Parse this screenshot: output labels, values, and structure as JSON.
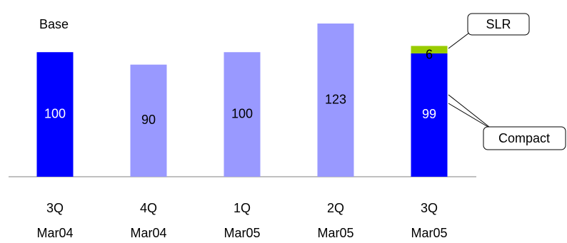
{
  "chart_data": {
    "type": "stacked-bar",
    "annotation": "Base",
    "categories": [
      [
        "3Q",
        "Mar04"
      ],
      [
        "4Q",
        "Mar04"
      ],
      [
        "1Q",
        "Mar05"
      ],
      [
        "2Q",
        "Mar05"
      ],
      [
        "3Q",
        "Mar05"
      ]
    ],
    "series": [
      {
        "name": "Compact",
        "colors": [
          "#0000ff",
          "#9999ff",
          "#9999ff",
          "#9999ff",
          "#0000ff"
        ],
        "values": [
          100,
          90,
          100,
          123,
          99
        ]
      },
      {
        "name": "SLR",
        "color": "#99cc00",
        "values": [
          null,
          null,
          null,
          null,
          6
        ]
      }
    ]
  }
}
